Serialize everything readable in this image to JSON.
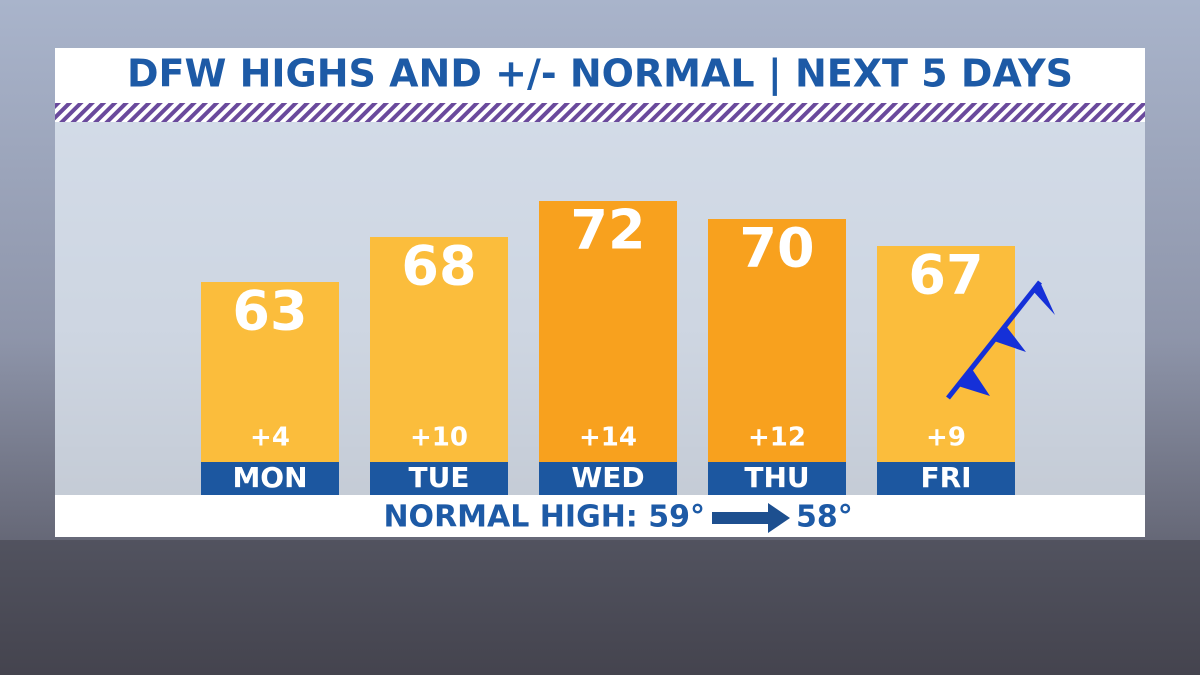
{
  "chart_data": {
    "type": "bar",
    "title": "DFW HIGHS AND +/- NORMAL | NEXT 5 DAYS",
    "categories": [
      "MON",
      "TUE",
      "WED",
      "THU",
      "FRI"
    ],
    "values": [
      63,
      68,
      72,
      70,
      67
    ],
    "colors": [
      "#fbbd3c",
      "#fbbd3c",
      "#f8a11e",
      "#f8a11e",
      "#fbbd3c"
    ],
    "departures": {
      "values": [
        4,
        10,
        14,
        12,
        9
      ],
      "value_labels": [
        "+4",
        "+10",
        "+14",
        "+12",
        "+9"
      ]
    },
    "ylim": [
      43,
      80
    ],
    "normal_high": {
      "label": "NORMAL HIGH: 59°",
      "next": "58°"
    }
  }
}
